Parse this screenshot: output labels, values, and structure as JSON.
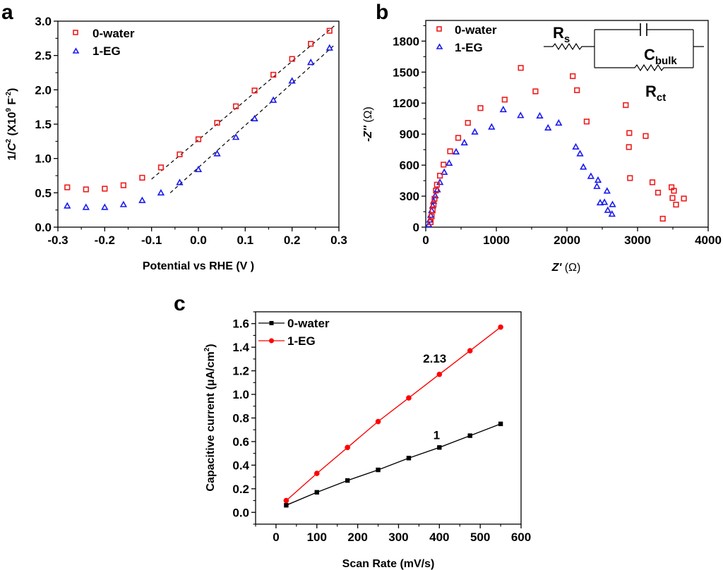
{
  "figure": {
    "panels": [
      "a",
      "b",
      "c"
    ]
  },
  "chart_data": [
    {
      "id": "a",
      "panel_label": "a",
      "type": "scatter",
      "title": "",
      "xlabel": "Potential vs RHE (V )",
      "ylabel_parts": {
        "pre": "1/",
        "italic": "C",
        "sup1": "2",
        "mid": " (X10",
        "sup2": "9",
        "post": " F",
        "sup3": "-2",
        "end": ")"
      },
      "xlim": [
        -0.3,
        0.3
      ],
      "ylim": [
        0.0,
        3.0
      ],
      "xticks": [
        -0.3,
        -0.2,
        -0.1,
        0.0,
        0.1,
        0.2,
        0.3
      ],
      "xtick_labels": [
        "-0.3",
        "-0.2",
        "-0.1",
        "0.0",
        "0.1",
        "0.2",
        "0.3"
      ],
      "yticks": [
        0.0,
        0.5,
        1.0,
        1.5,
        2.0,
        2.5,
        3.0
      ],
      "ytick_labels": [
        "0.0",
        "0.5",
        "1.0",
        "1.5",
        "2.0",
        "2.5",
        "3.0"
      ],
      "grid": false,
      "legend": "top-left",
      "series": [
        {
          "name": "0-water",
          "marker": "square-open",
          "color": "#ee1c1c",
          "x": [
            -0.28,
            -0.24,
            -0.2,
            -0.16,
            -0.12,
            -0.08,
            -0.04,
            0.0,
            0.04,
            0.08,
            0.12,
            0.16,
            0.2,
            0.24,
            0.28
          ],
          "y": [
            0.58,
            0.55,
            0.56,
            0.61,
            0.72,
            0.87,
            1.06,
            1.28,
            1.52,
            1.76,
            1.99,
            2.22,
            2.45,
            2.67,
            2.86
          ]
        },
        {
          "name": "1-EG",
          "marker": "triangle-open",
          "color": "#1a1aee",
          "x": [
            -0.28,
            -0.24,
            -0.2,
            -0.16,
            -0.12,
            -0.08,
            -0.04,
            0.0,
            0.04,
            0.08,
            0.12,
            0.16,
            0.2,
            0.24,
            0.28
          ],
          "y": [
            0.31,
            0.29,
            0.29,
            0.33,
            0.39,
            0.5,
            0.65,
            0.84,
            1.07,
            1.31,
            1.58,
            1.85,
            2.13,
            2.4,
            2.61
          ]
        }
      ],
      "fit_lines": [
        {
          "name": "0-water linear fit",
          "x": [
            -0.1,
            0.29
          ],
          "y": [
            0.7,
            2.93
          ]
        },
        {
          "name": "1-EG linear fit",
          "x": [
            -0.06,
            0.29
          ],
          "y": [
            0.5,
            2.65
          ]
        }
      ]
    },
    {
      "id": "b",
      "panel_label": "b",
      "type": "scatter",
      "title": "",
      "xlabel_parts": {
        "italic": "Z'",
        "rest": " (Ω)"
      },
      "ylabel_parts": {
        "italic": "-Z''",
        "rest": " (Ω)"
      },
      "xlim": [
        0,
        4000
      ],
      "ylim": [
        0,
        2000
      ],
      "xticks": [
        0,
        1000,
        2000,
        3000,
        4000
      ],
      "xtick_labels": [
        "0",
        "1000",
        "2000",
        "3000",
        "4000"
      ],
      "yticks": [
        0,
        300,
        600,
        900,
        1200,
        1500,
        1800
      ],
      "ytick_labels": [
        "0",
        "300",
        "600",
        "900",
        "1200",
        "1500",
        "1800"
      ],
      "grid": false,
      "legend": "top-left",
      "series": [
        {
          "name": "0-water",
          "marker": "square-open",
          "color": "#ee1c1c",
          "x": [
            70,
            84,
            98,
            111,
            124,
            144,
            158,
            201,
            252,
            345,
            460,
            597,
            775,
            1118,
            1346,
            1554,
            2082,
            2142,
            2279,
            2833,
            2883,
            2877,
            3115,
            2893,
            3210,
            3290,
            3481,
            3515,
            3495,
            3656,
            3545,
            3357
          ],
          "y": [
            48,
            104,
            162,
            218,
            275,
            354,
            411,
            498,
            605,
            734,
            864,
            1009,
            1152,
            1234,
            1541,
            1314,
            1461,
            1325,
            1022,
            1181,
            911,
            775,
            882,
            475,
            434,
            334,
            386,
            352,
            282,
            277,
            218,
            82
          ]
        },
        {
          "name": "1-EG",
          "marker": "triangle-open",
          "color": "#1a1aee",
          "x": [
            43,
            57,
            70,
            84,
            98,
            111,
            134,
            164,
            201,
            262,
            332,
            430,
            547,
            695,
            933,
            1098,
            1343,
            1615,
            1732,
            1883,
            2125,
            2185,
            2232,
            2339,
            2440,
            2424,
            2568,
            2470,
            2531,
            2645,
            2578,
            2638
          ],
          "y": [
            25,
            70,
            116,
            162,
            207,
            252,
            305,
            363,
            434,
            532,
            620,
            729,
            817,
            922,
            970,
            1138,
            1081,
            1077,
            961,
            1008,
            777,
            711,
            582,
            493,
            455,
            395,
            350,
            237,
            241,
            220,
            164,
            127
          ]
        }
      ],
      "inset_circuit": {
        "components": [
          "R_s",
          "C_bulk",
          "R_ct"
        ],
        "labels": {
          "rs_main": "R",
          "rs_sub": "s",
          "cbulk_main": "C",
          "cbulk_sub": "bulk",
          "rct_main": "R",
          "rct_sub": "ct"
        },
        "topology": "R_s in series with (C_bulk parallel R_ct)"
      }
    },
    {
      "id": "c",
      "panel_label": "c",
      "type": "line",
      "title": "",
      "xlabel": "Scan Rate (mV/s)",
      "ylabel_parts": {
        "pre": "Capacitive current (μA/cm",
        "sup": "2",
        "end": ")"
      },
      "xlim": [
        -50,
        600
      ],
      "ylim": [
        -0.1,
        1.7
      ],
      "xticks": [
        0,
        100,
        200,
        300,
        400,
        500,
        600
      ],
      "xtick_labels": [
        "0",
        "100",
        "200",
        "300",
        "400",
        "500",
        "600"
      ],
      "yticks": [
        0.0,
        0.2,
        0.4,
        0.6,
        0.8,
        1.0,
        1.2,
        1.4,
        1.6
      ],
      "ytick_labels": [
        "0.0",
        "0.2",
        "0.4",
        "0.6",
        "0.8",
        "1.0",
        "1.2",
        "1.4",
        "1.6"
      ],
      "grid": false,
      "legend": "top-left",
      "series": [
        {
          "name": "0-water",
          "marker": "square-filled",
          "color": "#000000",
          "x": [
            25,
            100,
            175,
            250,
            325,
            400,
            475,
            550
          ],
          "y": [
            0.06,
            0.17,
            0.27,
            0.36,
            0.46,
            0.55,
            0.65,
            0.75
          ]
        },
        {
          "name": "1-EG",
          "marker": "circle-filled",
          "color": "#ff0000",
          "x": [
            25,
            100,
            175,
            250,
            325,
            400,
            475,
            550
          ],
          "y": [
            0.1,
            0.33,
            0.55,
            0.77,
            0.97,
            1.17,
            1.37,
            1.57
          ]
        }
      ],
      "annotations": [
        {
          "text": "2.13",
          "x": 360,
          "y": 1.27
        },
        {
          "text": "1",
          "x": 385,
          "y": 0.62
        }
      ]
    }
  ]
}
